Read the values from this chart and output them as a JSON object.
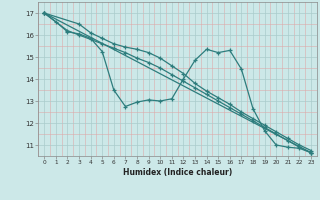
{
  "xlabel": "Humidex (Indice chaleur)",
  "ylabel": "",
  "background_color": "#cce8e8",
  "grid_color": "#aacccc",
  "line_color": "#2d7d7d",
  "xlim": [
    -0.5,
    23.5
  ],
  "ylim": [
    10.5,
    17.5
  ],
  "xticks": [
    0,
    1,
    2,
    3,
    4,
    5,
    6,
    7,
    8,
    9,
    10,
    11,
    12,
    13,
    14,
    15,
    16,
    17,
    18,
    19,
    20,
    21,
    22,
    23
  ],
  "yticks": [
    11,
    12,
    13,
    14,
    15,
    16,
    17
  ],
  "series": [
    {
      "x": [
        0,
        1,
        2,
        3,
        4,
        5,
        6,
        7,
        8,
        9,
        10,
        11,
        12,
        13,
        14,
        15,
        16,
        17,
        18,
        19,
        20,
        21,
        22,
        23
      ],
      "y": [
        17.0,
        16.6,
        16.15,
        16.05,
        15.85,
        15.25,
        13.5,
        12.75,
        12.95,
        13.05,
        13.0,
        13.1,
        14.0,
        14.85,
        15.35,
        15.2,
        15.3,
        14.45,
        12.65,
        11.65,
        11.0,
        10.9,
        10.85,
        10.65
      ]
    },
    {
      "x": [
        0,
        3,
        4,
        5,
        6,
        7,
        8,
        9,
        10,
        11,
        12,
        13,
        14,
        15,
        16,
        17,
        18,
        19,
        20,
        21,
        22,
        23
      ],
      "y": [
        17.0,
        16.5,
        16.1,
        15.85,
        15.6,
        15.45,
        15.35,
        15.2,
        14.95,
        14.6,
        14.25,
        13.8,
        13.45,
        13.15,
        12.85,
        12.5,
        12.2,
        11.9,
        11.6,
        11.3,
        11.0,
        10.75
      ]
    },
    {
      "x": [
        0,
        2,
        3,
        4,
        5,
        6,
        7,
        8,
        9,
        10,
        11,
        12,
        13,
        14,
        15,
        16,
        17,
        18,
        19,
        20,
        21,
        22,
        23
      ],
      "y": [
        17.0,
        16.2,
        16.0,
        15.8,
        15.6,
        15.4,
        15.2,
        14.95,
        14.75,
        14.5,
        14.2,
        13.9,
        13.6,
        13.3,
        13.0,
        12.7,
        12.4,
        12.1,
        11.8,
        11.5,
        11.2,
        10.9,
        10.65
      ]
    },
    {
      "x": [
        0,
        23
      ],
      "y": [
        17.0,
        10.65
      ]
    }
  ]
}
